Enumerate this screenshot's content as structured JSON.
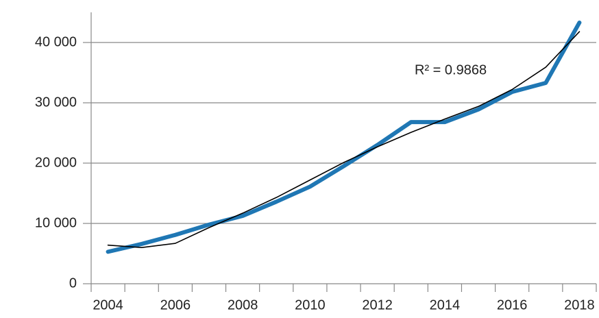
{
  "chart_data": {
    "type": "line",
    "annotation": "R² = 0.9868",
    "categories": [
      "2004",
      null,
      "2006",
      null,
      "2008",
      null,
      "2010",
      null,
      "2012",
      null,
      "2014",
      null,
      "2016",
      null,
      "2018"
    ],
    "series": [
      {
        "color": "#1f77b4",
        "values": [
          5300,
          6600,
          8100,
          9800,
          11250,
          13600,
          16100,
          19500,
          23000,
          26800,
          26800,
          28900,
          31800,
          33300,
          43300
        ]
      },
      {
        "color": "#000000",
        "values": [
          6400,
          6000,
          6700,
          9300,
          11700,
          14300,
          17200,
          20100,
          22700,
          25100,
          27300,
          29400,
          32200,
          35900,
          41800
        ]
      }
    ],
    "ylim": [
      0,
      45000
    ],
    "yticks": [
      0,
      {
        "value": 10000,
        "label": "10 000"
      },
      {
        "value": 20000,
        "label": "20 000"
      },
      {
        "value": 30000,
        "label": "30 000"
      },
      {
        "value": 40000,
        "label": "40 000"
      }
    ],
    "grid": true
  }
}
